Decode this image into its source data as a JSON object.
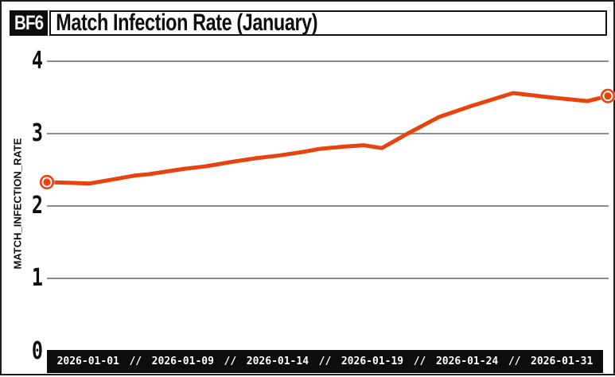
{
  "header": {
    "logo": "BF6",
    "title": "Match Infection Rate (January)"
  },
  "colors": {
    "line": "#e8430e",
    "marker": "#e8430e",
    "grid": "#8c8c8c",
    "bar_background": "#0d0d0d",
    "text": "#0d0d0d"
  },
  "chart_data": {
    "type": "line",
    "title": "Match Infection Rate (January)",
    "xlabel": "",
    "ylabel": "MATCH_INFECTION_RATE",
    "ylim": [
      0,
      4
    ],
    "grid": true,
    "y_ticks": [
      4,
      3,
      2,
      1,
      0
    ],
    "x_tick_labels": [
      "2026-01-01",
      "2026-01-09",
      "2026-01-14",
      "2026-01-19",
      "2026-01-24",
      "2026-01-31"
    ],
    "x_tick_separator": "//",
    "series": [
      {
        "name": "match_infection_rate",
        "points": [
          [
            0.0,
            2.33
          ],
          [
            0.043,
            2.32
          ],
          [
            0.075,
            2.31
          ],
          [
            0.113,
            2.36
          ],
          [
            0.156,
            2.42
          ],
          [
            0.182,
            2.44
          ],
          [
            0.241,
            2.51
          ],
          [
            0.284,
            2.55
          ],
          [
            0.33,
            2.61
          ],
          [
            0.373,
            2.66
          ],
          [
            0.416,
            2.7
          ],
          [
            0.458,
            2.75
          ],
          [
            0.487,
            2.79
          ],
          [
            0.529,
            2.82
          ],
          [
            0.565,
            2.84
          ],
          [
            0.597,
            2.8
          ],
          [
            0.643,
            3.0
          ],
          [
            0.699,
            3.23
          ],
          [
            0.756,
            3.38
          ],
          [
            0.831,
            3.56
          ],
          [
            0.898,
            3.5
          ],
          [
            0.964,
            3.45
          ],
          [
            1.0,
            3.52
          ]
        ],
        "endpoint_markers": true,
        "first_value": 2.33,
        "last_value": 3.52
      }
    ]
  }
}
